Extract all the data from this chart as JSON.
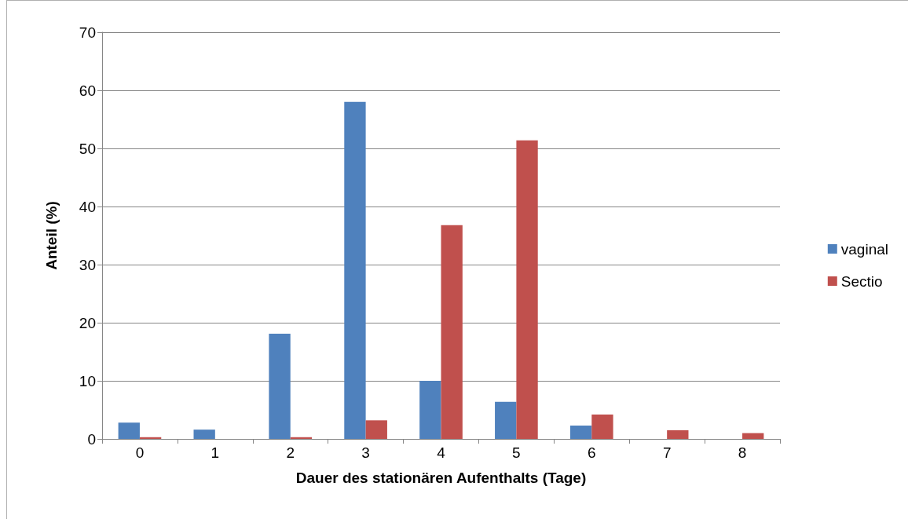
{
  "chart_data": {
    "type": "bar",
    "xlabel": "Dauer des stationären Aufenthalts (Tage)",
    "ylabel": "Anteil (%)",
    "categories": [
      "0",
      "1",
      "2",
      "3",
      "4",
      "5",
      "6",
      "7",
      "8"
    ],
    "series": [
      {
        "name": "vaginal",
        "color": "#4f81bd",
        "values": [
          2.8,
          1.6,
          18.1,
          58.0,
          10.0,
          6.4,
          2.3,
          0,
          0
        ]
      },
      {
        "name": "Sectio",
        "color": "#c0504d",
        "values": [
          0.3,
          0,
          0.3,
          3.2,
          36.8,
          51.4,
          4.2,
          1.5,
          1.0
        ]
      }
    ],
    "ylim": [
      0,
      70
    ],
    "yticks": [
      0,
      10,
      20,
      30,
      40,
      50,
      60,
      70
    ],
    "grid": "y",
    "legend": "right"
  }
}
